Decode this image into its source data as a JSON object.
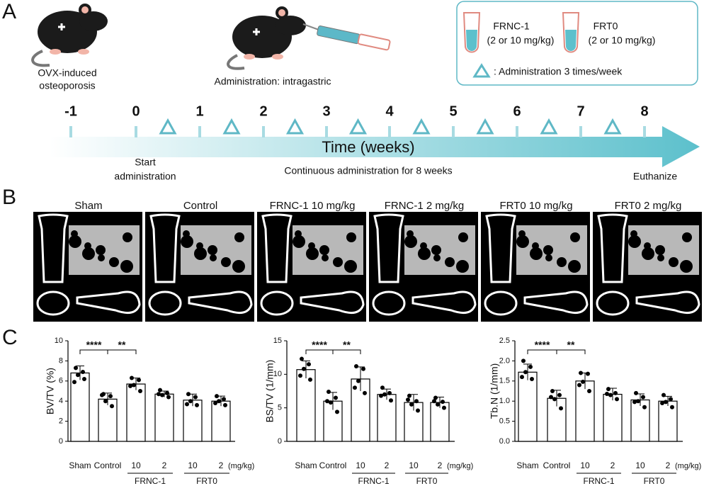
{
  "panel_a": {
    "label": "A",
    "model": [
      "OVX-induced",
      "osteoporosis"
    ],
    "administration": "Administration: intragastric",
    "legend": {
      "drugs": [
        {
          "name": "FRNC-1",
          "dose": "(2 or 10 mg/kg)"
        },
        {
          "name": "FRT0",
          "dose": "(2 or 10 mg/kg)"
        }
      ],
      "schedule": ": Administration 3 times/week"
    },
    "timeline": {
      "ticks": [
        -1,
        0,
        1,
        2,
        3,
        4,
        5,
        6,
        7,
        8
      ],
      "axis_title": "Time (weeks)",
      "start": [
        "Start",
        "administration"
      ],
      "duration": "Continuous administration for 8 weeks",
      "end": "Euthanize"
    }
  },
  "panel_b": {
    "label": "B",
    "groups": [
      "Sham",
      "Control",
      "FRNC-1 10 mg/kg",
      "FRNC-1 2 mg/kg",
      "FRT0 10 mg/kg",
      "FRT0 2 mg/kg"
    ]
  },
  "panel_c": {
    "label": "C"
  },
  "chart_data": [
    {
      "type": "bar",
      "y_label": "BV/TV (%)",
      "categories": [
        "Sham",
        "Control",
        "10",
        "2",
        "10",
        "2"
      ],
      "values": [
        6.8,
        4.2,
        5.7,
        4.7,
        4.1,
        4.0
      ],
      "errors": [
        0.7,
        0.6,
        0.6,
        0.3,
        0.6,
        0.5
      ],
      "points": [
        [
          7.3,
          6.9,
          6.6,
          6.2,
          5.9
        ],
        [
          4.7,
          4.5,
          4.0,
          3.5,
          4.6
        ],
        [
          6.3,
          6.1,
          5.6,
          5.0,
          5.5
        ],
        [
          5.1,
          4.8,
          4.6,
          4.4,
          4.7
        ],
        [
          4.7,
          4.4,
          4.0,
          3.6,
          3.7
        ],
        [
          4.5,
          4.2,
          4.0,
          3.6,
          3.8
        ]
      ],
      "group_labels": [
        "FRNC-1",
        "FRT0"
      ],
      "unit_label": "(mg/kg)",
      "significance": [
        "****",
        "**"
      ],
      "color": "#ffffff",
      "ylim": [
        0,
        10
      ],
      "yticks": [
        0,
        2,
        4,
        6,
        8,
        10
      ]
    },
    {
      "type": "bar",
      "y_label": "BS/TV (1/mm)",
      "categories": [
        "Sham",
        "Control",
        "10",
        "2",
        "10",
        "2"
      ],
      "values": [
        10.7,
        6.0,
        9.3,
        7.0,
        5.8,
        5.8
      ],
      "errors": [
        1.3,
        1.3,
        1.8,
        0.8,
        1.2,
        0.8
      ],
      "points": [
        [
          12.3,
          11.5,
          10.8,
          9.2,
          9.8
        ],
        [
          7.4,
          6.5,
          5.8,
          4.4,
          6.0
        ],
        [
          11.2,
          10.8,
          9.0,
          7.2,
          8.0
        ],
        [
          8.0,
          7.2,
          7.0,
          6.1,
          6.8
        ],
        [
          6.8,
          6.0,
          5.5,
          4.6,
          6.2
        ],
        [
          6.5,
          5.9,
          5.5,
          5.0,
          6.0
        ]
      ],
      "group_labels": [
        "FRNC-1",
        "FRT0"
      ],
      "unit_label": "(mg/kg)",
      "significance": [
        "****",
        "**"
      ],
      "color": "#ffffff",
      "ylim": [
        0,
        15
      ],
      "yticks": [
        0,
        5,
        10,
        15
      ]
    },
    {
      "type": "bar",
      "y_label": "Tb.N (1/mm)",
      "categories": [
        "Sham",
        "Control",
        "10",
        "2",
        "10",
        "2"
      ],
      "values": [
        1.72,
        1.07,
        1.5,
        1.17,
        1.03,
        1.0
      ],
      "errors": [
        0.2,
        0.2,
        0.2,
        0.15,
        0.15,
        0.12
      ],
      "points": [
        [
          2.0,
          1.85,
          1.72,
          1.55,
          1.6
        ],
        [
          1.25,
          1.15,
          1.05,
          0.82,
          1.1
        ],
        [
          1.7,
          1.68,
          1.48,
          1.25,
          1.4
        ],
        [
          1.3,
          1.2,
          1.15,
          1.05,
          1.18
        ],
        [
          1.2,
          1.1,
          1.0,
          0.85,
          0.98
        ],
        [
          1.15,
          1.05,
          0.98,
          0.85,
          0.95
        ]
      ],
      "group_labels": [
        "FRNC-1",
        "FRT0"
      ],
      "unit_label": "(mg/kg)",
      "significance": [
        "****",
        "**"
      ],
      "color": "#ffffff",
      "ylim": [
        0,
        2.5
      ],
      "yticks": [
        {
          "value": 0,
          "label": "0.0"
        },
        0.5,
        {
          "value": 1,
          "label": "1.0"
        },
        1.5,
        {
          "value": 2,
          "label": "2.0"
        },
        2.5
      ]
    }
  ]
}
